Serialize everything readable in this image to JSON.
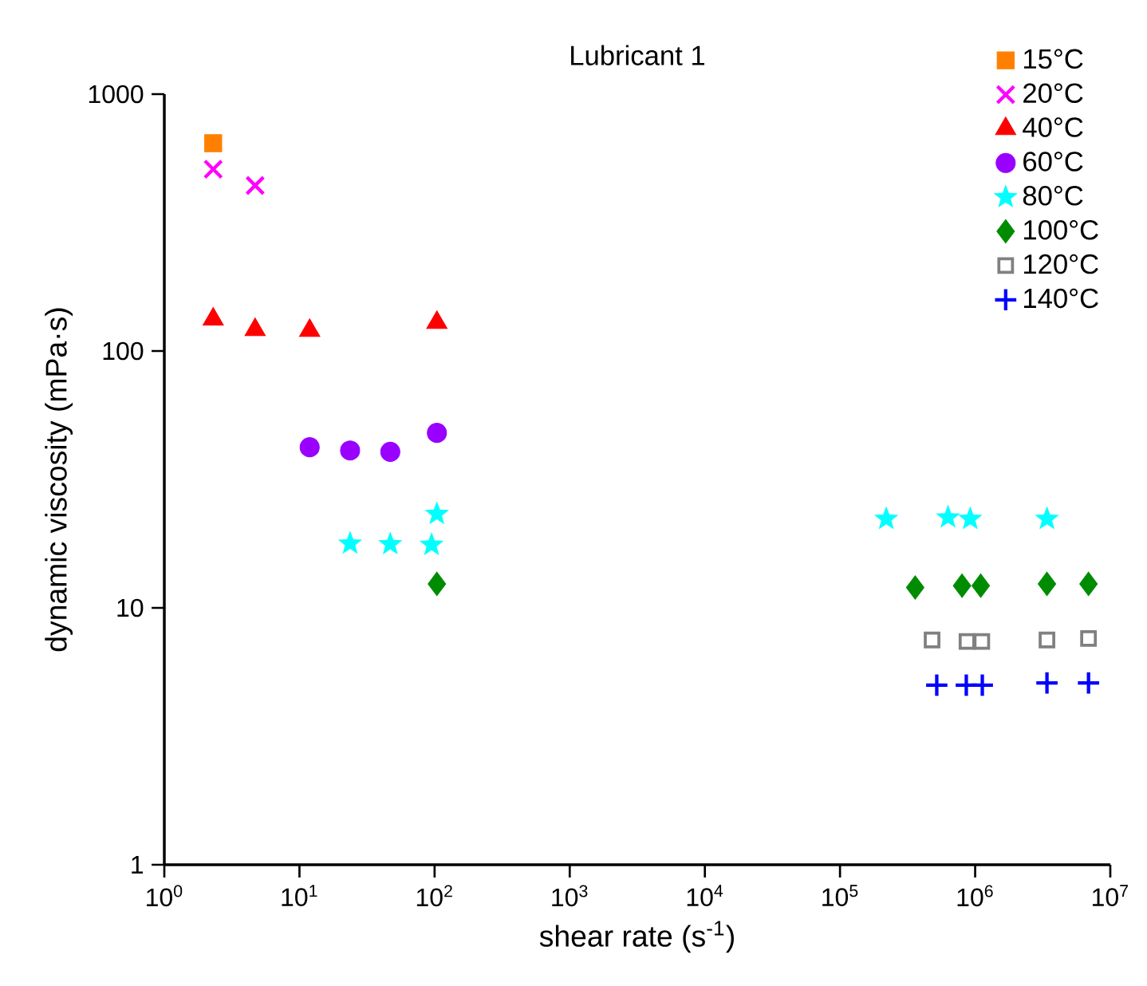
{
  "chart_data": {
    "type": "scatter",
    "title": "Lubricant 1",
    "xlabel": "shear rate (s$^{-1}$)",
    "ylabel": "dynamic viscosity (mPa·s)",
    "log": "xy",
    "grid": false,
    "legend": "top right",
    "xlim": [
      1,
      10000000
    ],
    "ylim": [
      1,
      1000
    ],
    "xticks": [
      {
        "value": 1,
        "label": "10$^{0}$"
      },
      {
        "value": 10,
        "label": "10$^{1}$"
      },
      {
        "value": 100,
        "label": "10$^{2}$"
      },
      {
        "value": 1000,
        "label": "10$^{3}$"
      },
      {
        "value": 10000,
        "label": "10$^{4}$"
      },
      {
        "value": 100000,
        "label": "10$^{5}$"
      },
      {
        "value": 1000000,
        "label": "10$^{6}$"
      },
      {
        "value": 10000000,
        "label": "10$^{7}$"
      }
    ],
    "yticks": [
      1,
      10,
      100,
      1000
    ],
    "series": [
      {
        "name": "15°C",
        "color": "#ff8000",
        "marker": "square",
        "x": [
          2.3
        ],
        "values": [
          644
        ]
      },
      {
        "name": "20°C",
        "color": "#ff00ff",
        "marker": "cross",
        "x": [
          2.3,
          4.7
        ],
        "values": [
          510,
          441
        ]
      },
      {
        "name": "40°C",
        "color": "#ff0000",
        "marker": "triangle",
        "x": [
          2.3,
          4.7,
          11.9,
          104
        ],
        "values": [
          133,
          121,
          120,
          129
        ]
      },
      {
        "name": "60°C",
        "color": "#9900ff",
        "marker": "circle",
        "x": [
          11.9,
          23.7,
          47,
          104
        ],
        "values": [
          42.2,
          41,
          40.5,
          48
        ]
      },
      {
        "name": "80°C",
        "color": "#00ffff",
        "marker": "star",
        "x": [
          23.7,
          47,
          95,
          104,
          220000,
          630000,
          920000,
          3400000
        ],
        "values": [
          17.8,
          17.7,
          17.6,
          23.2,
          22.2,
          22.5,
          22.2,
          22.2
        ]
      },
      {
        "name": "100°C",
        "color": "#008c00",
        "marker": "diamond",
        "x": [
          104,
          360000,
          800000,
          1100000,
          3400000,
          6900000
        ],
        "values": [
          12.4,
          12.0,
          12.2,
          12.2,
          12.4,
          12.4
        ]
      },
      {
        "name": "120°C",
        "color": "#808080",
        "marker": "square-open",
        "x": [
          480000,
          870000,
          1120000,
          3400000,
          6900000
        ],
        "values": [
          7.5,
          7.4,
          7.4,
          7.5,
          7.6
        ]
      },
      {
        "name": "140°C",
        "color": "#0000ff",
        "marker": "plus",
        "x": [
          520000,
          860000,
          1130000,
          3400000,
          6900000
        ],
        "values": [
          5.0,
          5.0,
          5.0,
          5.1,
          5.1
        ]
      }
    ]
  }
}
